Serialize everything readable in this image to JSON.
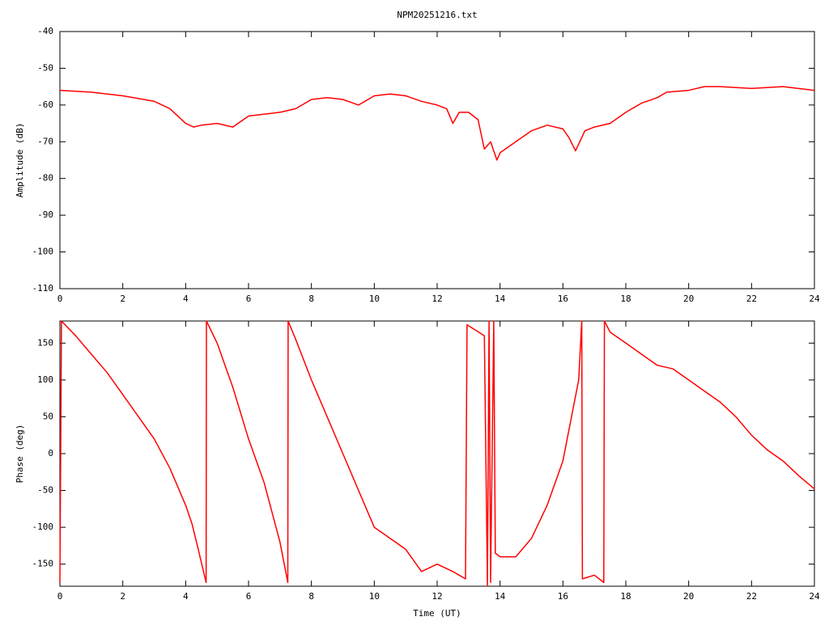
{
  "chart_data": [
    {
      "type": "line",
      "title": "NPM20251216.txt",
      "ylabel": "Amplitude (dB)",
      "x": [
        0,
        1,
        2,
        3,
        3.5,
        4,
        4.25,
        4.5,
        5,
        5.5,
        6,
        7,
        7.5,
        8,
        8.5,
        9,
        9.5,
        10,
        10.5,
        11,
        11.5,
        12,
        12.3,
        12.5,
        12.7,
        13,
        13.3,
        13.5,
        13.7,
        13.9,
        14,
        14.5,
        15,
        15.5,
        16,
        16.2,
        16.4,
        16.7,
        17,
        17.5,
        18,
        18.5,
        19,
        19.3,
        20,
        20.5,
        21,
        22,
        23,
        24
      ],
      "series": [
        {
          "name": null,
          "color": "#ff0000",
          "values": [
            -56,
            -56.5,
            -57.5,
            -59,
            -61,
            -65,
            -66,
            -65.5,
            -65,
            -66,
            -63,
            -62,
            -61,
            -58.5,
            -58,
            -58.5,
            -60,
            -57.5,
            -57,
            -57.5,
            -59,
            -60,
            -61,
            -65,
            -62,
            -62,
            -64,
            -72,
            -70,
            -75,
            -73,
            -70,
            -67,
            -65.5,
            -66.5,
            -69,
            -72.5,
            -67,
            -66,
            -65,
            -62,
            -59.5,
            -58,
            -56.5,
            -56,
            -55,
            -55,
            -55.5,
            -55,
            -56
          ]
        }
      ],
      "xlim": [
        0,
        24
      ],
      "xticks": [
        0,
        2,
        4,
        6,
        8,
        10,
        12,
        14,
        16,
        18,
        20,
        22,
        24
      ],
      "ylim": [
        -110,
        -40
      ],
      "yticks": [
        -110,
        -100,
        -90,
        -80,
        -70,
        -60,
        -50,
        -40
      ]
    },
    {
      "type": "line",
      "xlabel": "Time (UT)",
      "ylabel": "Phase (deg)",
      "x": [
        0,
        0.05,
        0.5,
        1,
        1.5,
        2,
        2.5,
        3,
        3.5,
        4,
        4.2,
        4.4,
        4.65,
        4.66,
        5,
        5.5,
        6,
        6.5,
        7,
        7.25,
        7.26,
        7.5,
        8,
        8.5,
        9,
        9.5,
        10,
        10.5,
        11,
        11.5,
        12,
        12.5,
        12.9,
        12.95,
        13.5,
        13.6,
        13.65,
        13.7,
        13.8,
        13.85,
        14,
        14.5,
        15,
        15.5,
        16,
        16.5,
        16.6,
        16.62,
        17,
        17.3,
        17.32,
        17.5,
        18,
        18.5,
        19,
        19.5,
        20,
        20.5,
        21,
        21.5,
        22,
        22.5,
        23,
        23.5,
        24
      ],
      "series": [
        {
          "name": null,
          "color": "#ff0000",
          "values": [
            -175,
            180,
            160,
            135,
            110,
            80,
            50,
            20,
            -20,
            -70,
            -95,
            -130,
            -175,
            180,
            150,
            90,
            20,
            -40,
            -120,
            -175,
            180,
            155,
            100,
            50,
            0,
            -50,
            -100,
            -115,
            -130,
            -160,
            -150,
            -160,
            -170,
            175,
            160,
            -180,
            180,
            -175,
            180,
            -135,
            -140,
            -140,
            -115,
            -70,
            -10,
            100,
            180,
            -170,
            -165,
            -175,
            180,
            165,
            150,
            135,
            120,
            115,
            100,
            85,
            70,
            50,
            25,
            5,
            -10,
            -30,
            -48
          ]
        }
      ],
      "xlim": [
        0,
        24
      ],
      "xticks": [
        0,
        2,
        4,
        6,
        8,
        10,
        12,
        14,
        16,
        18,
        20,
        22,
        24
      ],
      "ylim": [
        -180,
        180
      ],
      "yticks": [
        -150,
        -100,
        -50,
        0,
        50,
        100,
        150
      ]
    }
  ]
}
